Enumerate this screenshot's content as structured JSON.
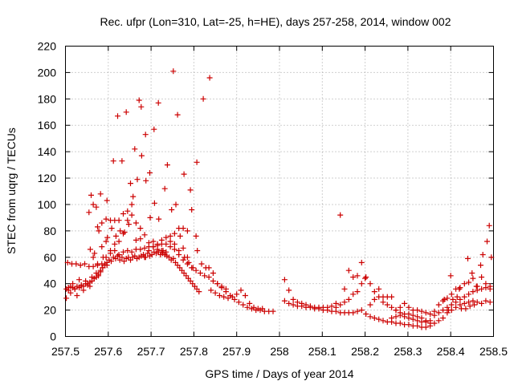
{
  "chart_data": {
    "type": "scatter",
    "title": "Rec. ufpr (Lon=310, Lat=-25, h=HE), days 257-258, 2014, window 002",
    "xlabel": "GPS time / Days of year 2014",
    "ylabel": "STEC from uqrg / TECUs",
    "xlim": [
      257.5,
      258.5
    ],
    "ylim": [
      0,
      220
    ],
    "x_ticks": [
      "257.5",
      "257.6",
      "257.7",
      "257.8",
      "257.9",
      "258",
      "258.1",
      "258.2",
      "258.3",
      "258.4",
      "258.5"
    ],
    "y_ticks": [
      "0",
      "20",
      "40",
      "60",
      "80",
      "100",
      "120",
      "140",
      "160",
      "180",
      "200",
      "220"
    ],
    "grid": true,
    "marker": "plus",
    "color": "#cc0000",
    "points": [
      [
        257.502,
        29
      ],
      [
        257.507,
        37
      ],
      [
        257.512,
        33
      ],
      [
        257.517,
        40
      ],
      [
        257.522,
        36
      ],
      [
        257.527,
        31
      ],
      [
        257.532,
        43
      ],
      [
        257.537,
        38
      ],
      [
        257.542,
        35
      ],
      [
        257.547,
        42
      ],
      [
        257.552,
        40
      ],
      [
        257.557,
        38
      ],
      [
        257.562,
        45
      ],
      [
        257.567,
        44
      ],
      [
        257.572,
        48
      ],
      [
        257.577,
        46
      ],
      [
        257.582,
        50
      ],
      [
        257.587,
        52
      ],
      [
        257.592,
        55
      ],
      [
        257.597,
        54
      ],
      [
        257.602,
        58
      ],
      [
        257.607,
        57
      ],
      [
        257.612,
        60
      ],
      [
        257.617,
        59
      ],
      [
        257.622,
        61
      ],
      [
        257.627,
        58
      ],
      [
        257.632,
        60
      ],
      [
        257.637,
        57
      ],
      [
        257.642,
        59
      ],
      [
        257.647,
        60
      ],
      [
        257.652,
        58
      ],
      [
        257.657,
        60
      ],
      [
        257.662,
        61
      ],
      [
        257.667,
        59
      ],
      [
        257.672,
        60
      ],
      [
        257.677,
        61
      ],
      [
        257.682,
        62
      ],
      [
        257.687,
        60
      ],
      [
        257.692,
        63
      ],
      [
        257.697,
        61
      ],
      [
        257.702,
        62
      ],
      [
        257.707,
        64
      ],
      [
        257.712,
        63
      ],
      [
        257.717,
        64
      ],
      [
        257.722,
        62
      ],
      [
        257.727,
        63
      ],
      [
        257.732,
        62
      ],
      [
        257.737,
        61
      ],
      [
        257.742,
        60
      ],
      [
        257.747,
        58
      ],
      [
        257.752,
        59
      ],
      [
        257.757,
        56
      ],
      [
        257.762,
        54
      ],
      [
        257.767,
        52
      ],
      [
        257.772,
        50
      ],
      [
        257.777,
        48
      ],
      [
        257.782,
        46
      ],
      [
        257.787,
        44
      ],
      [
        257.792,
        42
      ],
      [
        257.797,
        40
      ],
      [
        257.802,
        38
      ],
      [
        257.807,
        36
      ],
      [
        257.812,
        34
      ],
      [
        257.502,
        36
      ],
      [
        257.507,
        35
      ],
      [
        257.512,
        38
      ],
      [
        257.517,
        37
      ],
      [
        257.522,
        36
      ],
      [
        257.527,
        38
      ],
      [
        257.532,
        37
      ],
      [
        257.537,
        39
      ],
      [
        257.542,
        38
      ],
      [
        257.547,
        40
      ],
      [
        257.552,
        39
      ],
      [
        257.557,
        41
      ],
      [
        257.562,
        42
      ],
      [
        257.567,
        44
      ],
      [
        257.572,
        45
      ],
      [
        257.577,
        47
      ],
      [
        257.582,
        49
      ],
      [
        257.587,
        52
      ],
      [
        257.592,
        54
      ],
      [
        257.597,
        56
      ],
      [
        257.505,
        56
      ],
      [
        257.515,
        55
      ],
      [
        257.525,
        55
      ],
      [
        257.535,
        54
      ],
      [
        257.545,
        55
      ],
      [
        257.555,
        53
      ],
      [
        257.565,
        53
      ],
      [
        257.575,
        54
      ],
      [
        257.585,
        55
      ],
      [
        257.595,
        60
      ],
      [
        257.605,
        63
      ],
      [
        257.615,
        65
      ],
      [
        257.625,
        62
      ],
      [
        257.635,
        64
      ],
      [
        257.645,
        65
      ],
      [
        257.655,
        64
      ],
      [
        257.665,
        66
      ],
      [
        257.675,
        66
      ],
      [
        257.685,
        67
      ],
      [
        257.695,
        68
      ],
      [
        257.705,
        68
      ],
      [
        257.715,
        69
      ],
      [
        257.725,
        70
      ],
      [
        257.735,
        70
      ],
      [
        257.745,
        68
      ],
      [
        257.755,
        66
      ],
      [
        257.765,
        62
      ],
      [
        257.775,
        58
      ],
      [
        257.785,
        55
      ],
      [
        257.795,
        52
      ],
      [
        257.805,
        50
      ],
      [
        257.815,
        48
      ],
      [
        257.825,
        46
      ],
      [
        257.835,
        45
      ],
      [
        257.845,
        42
      ],
      [
        257.855,
        40
      ],
      [
        257.865,
        38
      ],
      [
        257.875,
        36
      ],
      [
        257.56,
        107
      ],
      [
        257.572,
        98
      ],
      [
        257.582,
        108
      ],
      [
        257.597,
        103
      ],
      [
        257.612,
        133
      ],
      [
        257.622,
        167
      ],
      [
        257.632,
        133
      ],
      [
        257.642,
        170
      ],
      [
        257.652,
        116
      ],
      [
        257.662,
        142
      ],
      [
        257.672,
        179
      ],
      [
        257.677,
        174
      ],
      [
        257.687,
        153
      ],
      [
        257.697,
        124
      ],
      [
        257.707,
        157
      ],
      [
        257.717,
        177
      ],
      [
        257.732,
        112
      ],
      [
        257.752,
        201
      ],
      [
        257.762,
        168
      ],
      [
        257.777,
        123
      ],
      [
        257.792,
        111
      ],
      [
        257.807,
        132
      ],
      [
        257.822,
        180
      ],
      [
        257.837,
        196
      ],
      [
        257.555,
        94
      ],
      [
        257.565,
        100
      ],
      [
        257.575,
        83
      ],
      [
        257.585,
        86
      ],
      [
        257.595,
        89
      ],
      [
        257.605,
        88
      ],
      [
        257.615,
        88
      ],
      [
        257.625,
        88
      ],
      [
        257.635,
        93
      ],
      [
        257.645,
        95
      ],
      [
        257.655,
        100
      ],
      [
        257.665,
        86
      ],
      [
        257.675,
        82
      ],
      [
        257.685,
        77
      ],
      [
        257.695,
        71
      ],
      [
        257.705,
        72
      ],
      [
        257.715,
        70
      ],
      [
        257.725,
        73
      ],
      [
        257.735,
        75
      ],
      [
        257.745,
        76
      ],
      [
        257.755,
        78
      ],
      [
        257.765,
        82
      ],
      [
        257.775,
        82
      ],
      [
        257.785,
        80
      ],
      [
        257.795,
        96
      ],
      [
        257.805,
        76
      ],
      [
        257.558,
        66
      ],
      [
        257.568,
        63
      ],
      [
        257.578,
        80
      ],
      [
        257.588,
        60
      ],
      [
        257.598,
        75
      ],
      [
        257.608,
        82
      ],
      [
        257.618,
        76
      ],
      [
        257.628,
        80
      ],
      [
        257.638,
        79
      ],
      [
        257.648,
        85
      ],
      [
        257.658,
        106
      ],
      [
        257.668,
        119
      ],
      [
        257.678,
        137
      ],
      [
        257.688,
        118
      ],
      [
        257.698,
        90
      ],
      [
        257.708,
        101
      ],
      [
        257.718,
        89
      ],
      [
        257.728,
        65
      ],
      [
        257.738,
        130
      ],
      [
        257.748,
        96
      ],
      [
        257.758,
        100
      ],
      [
        257.768,
        76
      ],
      [
        257.778,
        60
      ],
      [
        257.788,
        56
      ],
      [
        257.798,
        52
      ],
      [
        257.808,
        65
      ],
      [
        257.818,
        55
      ],
      [
        257.828,
        52
      ],
      [
        257.565,
        60
      ],
      [
        257.575,
        55
      ],
      [
        257.585,
        68
      ],
      [
        257.595,
        72
      ],
      [
        257.605,
        65
      ],
      [
        257.615,
        70
      ],
      [
        257.625,
        72
      ],
      [
        257.635,
        78
      ],
      [
        257.645,
        88
      ],
      [
        257.655,
        92
      ],
      [
        257.665,
        73
      ],
      [
        257.675,
        74
      ],
      [
        257.685,
        60
      ],
      [
        257.695,
        65
      ],
      [
        257.705,
        68
      ],
      [
        257.715,
        66
      ],
      [
        257.725,
        65
      ],
      [
        257.735,
        64
      ],
      [
        257.745,
        72
      ],
      [
        257.755,
        70
      ],
      [
        257.765,
        65
      ],
      [
        257.775,
        67
      ],
      [
        257.785,
        60
      ],
      [
        257.835,
        52
      ],
      [
        257.845,
        48
      ],
      [
        257.855,
        40
      ],
      [
        257.865,
        37
      ],
      [
        257.875,
        34
      ],
      [
        257.885,
        31
      ],
      [
        257.895,
        28
      ],
      [
        257.905,
        26
      ],
      [
        257.915,
        24
      ],
      [
        257.925,
        22
      ],
      [
        257.935,
        21
      ],
      [
        257.945,
        20
      ],
      [
        257.955,
        20
      ],
      [
        257.965,
        19
      ],
      [
        257.975,
        19
      ],
      [
        257.985,
        19
      ],
      [
        257.84,
        35
      ],
      [
        257.85,
        33
      ],
      [
        257.86,
        31
      ],
      [
        257.87,
        30
      ],
      [
        257.88,
        29
      ],
      [
        257.89,
        30
      ],
      [
        257.9,
        32
      ],
      [
        257.91,
        35
      ],
      [
        257.92,
        31
      ],
      [
        257.93,
        25
      ],
      [
        257.94,
        22
      ],
      [
        257.95,
        21
      ],
      [
        257.96,
        21
      ],
      [
        258.012,
        43
      ],
      [
        258.022,
        35
      ],
      [
        258.032,
        28
      ],
      [
        258.042,
        26
      ],
      [
        258.052,
        25
      ],
      [
        258.062,
        24
      ],
      [
        258.072,
        23
      ],
      [
        258.082,
        22
      ],
      [
        258.092,
        22
      ],
      [
        258.102,
        22
      ],
      [
        258.112,
        22
      ],
      [
        258.122,
        23
      ],
      [
        258.132,
        22
      ],
      [
        258.142,
        24
      ],
      [
        258.152,
        26
      ],
      [
        258.162,
        28
      ],
      [
        258.172,
        32
      ],
      [
        258.182,
        34
      ],
      [
        258.192,
        40
      ],
      [
        258.202,
        45
      ],
      [
        258.212,
        40
      ],
      [
        258.222,
        34
      ],
      [
        258.232,
        30
      ],
      [
        258.242,
        26
      ],
      [
        258.252,
        24
      ],
      [
        258.262,
        22
      ],
      [
        258.272,
        20
      ],
      [
        258.282,
        18
      ],
      [
        258.292,
        17
      ],
      [
        258.012,
        27
      ],
      [
        258.022,
        25
      ],
      [
        258.032,
        24
      ],
      [
        258.042,
        23
      ],
      [
        258.052,
        23
      ],
      [
        258.062,
        22
      ],
      [
        258.072,
        22
      ],
      [
        258.082,
        21
      ],
      [
        258.092,
        21
      ],
      [
        258.102,
        20
      ],
      [
        258.112,
        20
      ],
      [
        258.122,
        19
      ],
      [
        258.132,
        19
      ],
      [
        258.142,
        18
      ],
      [
        258.152,
        18
      ],
      [
        258.162,
        18
      ],
      [
        258.172,
        18
      ],
      [
        258.182,
        19
      ],
      [
        258.192,
        20
      ],
      [
        258.202,
        17
      ],
      [
        258.212,
        15
      ],
      [
        258.222,
        14
      ],
      [
        258.232,
        13
      ],
      [
        258.242,
        12
      ],
      [
        258.252,
        11
      ],
      [
        258.262,
        11
      ],
      [
        258.272,
        10
      ],
      [
        258.282,
        10
      ],
      [
        258.292,
        9
      ],
      [
        258.302,
        9
      ],
      [
        258.312,
        8
      ],
      [
        258.322,
        8
      ],
      [
        258.332,
        7
      ],
      [
        258.342,
        7
      ],
      [
        258.352,
        8
      ],
      [
        258.132,
        25
      ],
      [
        258.142,
        92
      ],
      [
        258.152,
        36
      ],
      [
        258.162,
        50
      ],
      [
        258.172,
        45
      ],
      [
        258.182,
        46
      ],
      [
        258.192,
        56
      ],
      [
        258.2,
        44
      ],
      [
        258.212,
        24
      ],
      [
        258.222,
        28
      ],
      [
        258.232,
        36
      ],
      [
        258.242,
        30
      ],
      [
        258.252,
        30
      ],
      [
        258.262,
        30
      ],
      [
        258.272,
        20
      ],
      [
        258.282,
        22
      ],
      [
        258.292,
        25
      ],
      [
        258.262,
        14
      ],
      [
        258.272,
        15
      ],
      [
        258.282,
        16
      ],
      [
        258.292,
        15
      ],
      [
        258.302,
        14
      ],
      [
        258.312,
        13
      ],
      [
        258.322,
        12
      ],
      [
        258.332,
        11
      ],
      [
        258.342,
        11
      ],
      [
        258.352,
        12
      ],
      [
        258.362,
        16
      ],
      [
        258.372,
        18
      ],
      [
        258.382,
        20
      ],
      [
        258.392,
        22
      ],
      [
        258.402,
        24
      ],
      [
        258.412,
        26
      ],
      [
        258.422,
        28
      ],
      [
        258.432,
        30
      ],
      [
        258.442,
        32
      ],
      [
        258.452,
        34
      ],
      [
        258.462,
        35
      ],
      [
        258.472,
        36
      ],
      [
        258.482,
        37
      ],
      [
        258.492,
        36
      ],
      [
        258.302,
        17
      ],
      [
        258.312,
        16
      ],
      [
        258.322,
        15
      ],
      [
        258.332,
        14
      ],
      [
        258.342,
        12
      ],
      [
        258.352,
        10
      ],
      [
        258.362,
        10
      ],
      [
        258.372,
        12
      ],
      [
        258.382,
        14
      ],
      [
        258.392,
        18
      ],
      [
        258.402,
        20
      ],
      [
        258.412,
        22
      ],
      [
        258.422,
        24
      ],
      [
        258.432,
        25
      ],
      [
        258.442,
        26
      ],
      [
        258.452,
        27
      ],
      [
        258.462,
        26
      ],
      [
        258.472,
        25
      ],
      [
        258.482,
        27
      ],
      [
        258.492,
        26
      ],
      [
        258.302,
        22
      ],
      [
        258.312,
        20
      ],
      [
        258.322,
        20
      ],
      [
        258.332,
        19
      ],
      [
        258.342,
        18
      ],
      [
        258.352,
        17
      ],
      [
        258.362,
        19
      ],
      [
        258.372,
        24
      ],
      [
        258.382,
        27
      ],
      [
        258.392,
        29
      ],
      [
        258.402,
        32
      ],
      [
        258.412,
        36
      ],
      [
        258.422,
        37
      ],
      [
        258.432,
        40
      ],
      [
        258.442,
        41
      ],
      [
        258.452,
        44
      ],
      [
        258.462,
        38
      ],
      [
        258.472,
        45
      ],
      [
        258.482,
        40
      ],
      [
        258.492,
        38
      ],
      [
        258.4,
        46
      ],
      [
        258.42,
        36
      ],
      [
        258.44,
        59
      ],
      [
        258.45,
        48
      ],
      [
        258.46,
        38
      ],
      [
        258.47,
        54
      ],
      [
        258.475,
        62
      ],
      [
        258.485,
        72
      ],
      [
        258.49,
        84
      ],
      [
        258.495,
        60
      ],
      [
        258.385,
        28
      ],
      [
        258.395,
        20
      ],
      [
        258.405,
        28
      ],
      [
        258.415,
        30
      ],
      [
        258.425,
        21
      ],
      [
        258.435,
        21
      ],
      [
        258.445,
        23
      ],
      [
        258.455,
        24
      ]
    ]
  }
}
